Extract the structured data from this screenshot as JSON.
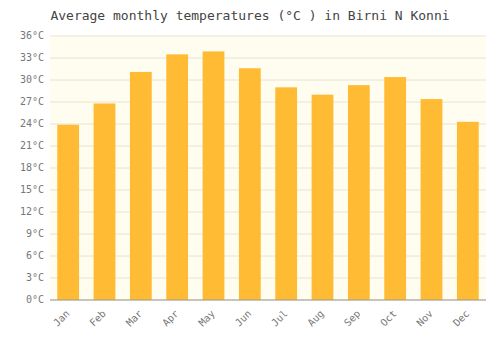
{
  "chart_data": {
    "type": "bar",
    "title": "Average monthly temperatures (°C ) in Birni N Konni",
    "categories": [
      "Jan",
      "Feb",
      "Mar",
      "Apr",
      "May",
      "Jun",
      "Jul",
      "Aug",
      "Sep",
      "Oct",
      "Nov",
      "Dec"
    ],
    "values": [
      23.9,
      26.8,
      31.1,
      33.5,
      33.9,
      31.6,
      29.0,
      28.0,
      29.3,
      30.4,
      27.4,
      24.3
    ],
    "color": "#FFBB33",
    "ylim": [
      0,
      36
    ],
    "yticks": [
      {
        "value": 0,
        "label": "0°C"
      },
      {
        "value": 3,
        "label": "3°C"
      },
      {
        "value": 6,
        "label": "6°C"
      },
      {
        "value": 9,
        "label": "9°C"
      },
      {
        "value": 12,
        "label": "12°C"
      },
      {
        "value": 15,
        "label": "15°C"
      },
      {
        "value": 18,
        "label": "18°C"
      },
      {
        "value": 21,
        "label": "21°C"
      },
      {
        "value": 24,
        "label": "24°C"
      },
      {
        "value": 27,
        "label": "27°C"
      },
      {
        "value": 30,
        "label": "30°C"
      },
      {
        "value": 33,
        "label": "33°C"
      },
      {
        "value": 36,
        "label": "36°C"
      }
    ],
    "grid": true
  }
}
